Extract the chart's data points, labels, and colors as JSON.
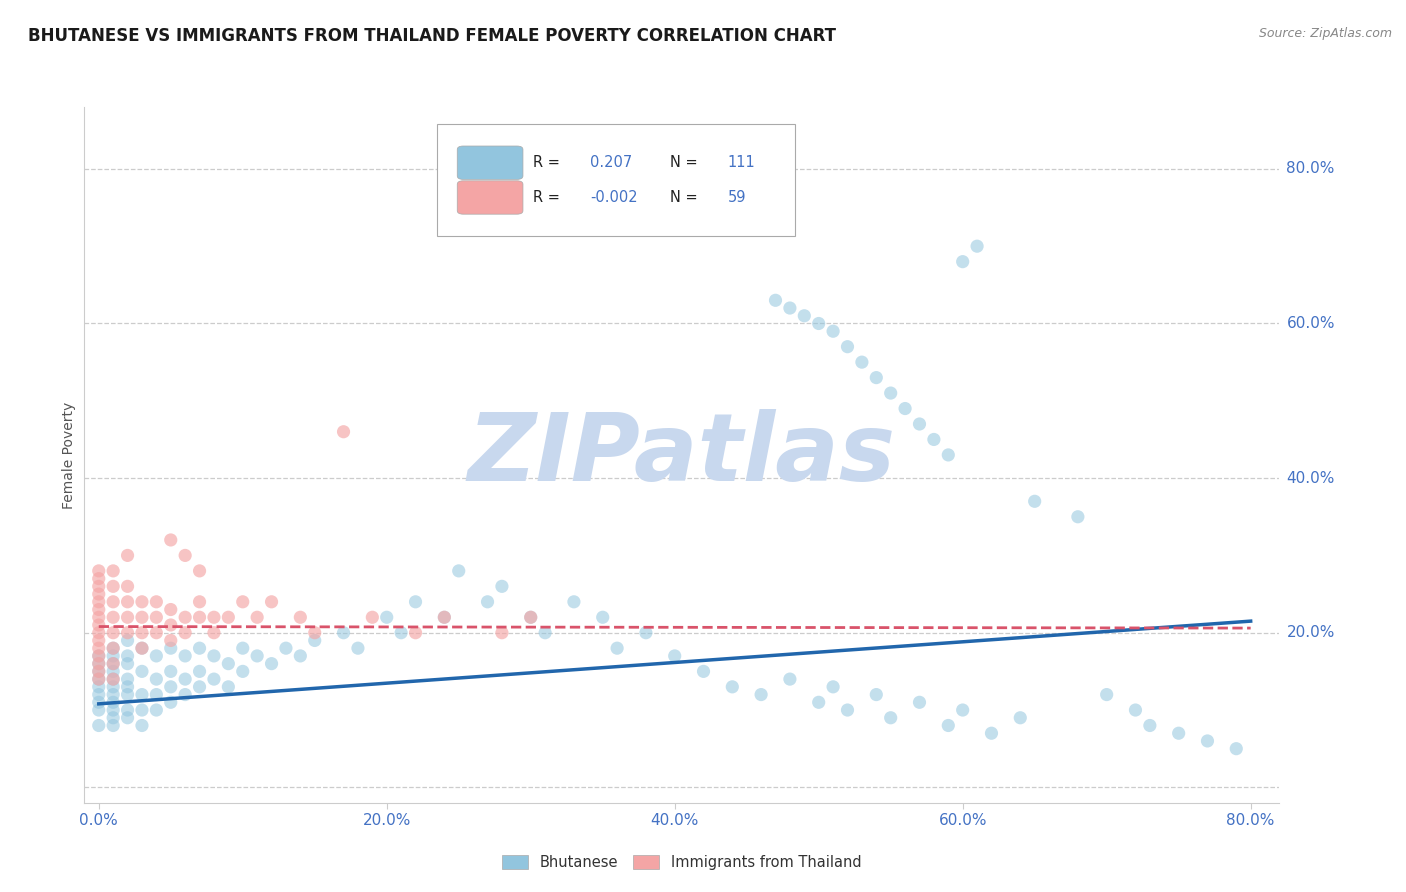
{
  "title": "BHUTANESE VS IMMIGRANTS FROM THAILAND FEMALE POVERTY CORRELATION CHART",
  "source": "Source: ZipAtlas.com",
  "ylabel": "Female Poverty",
  "xlim": [
    -0.01,
    0.82
  ],
  "ylim": [
    -0.02,
    0.88
  ],
  "ytick_vals": [
    0.0,
    0.2,
    0.4,
    0.6,
    0.8
  ],
  "xtick_vals": [
    0.0,
    0.2,
    0.4,
    0.6,
    0.8
  ],
  "blue_R": "0.207",
  "blue_N": "111",
  "pink_R": "-0.002",
  "pink_N": "59",
  "blue_color": "#92C5DE",
  "pink_color": "#F4A5A5",
  "blue_line_color": "#2166AC",
  "pink_line_color": "#D9536A",
  "blue_line": {
    "x0": 0.0,
    "x1": 0.8,
    "y0": 0.108,
    "y1": 0.215
  },
  "pink_line": {
    "x0": 0.0,
    "x1": 0.8,
    "y0": 0.208,
    "y1": 0.206
  },
  "blue_scatter_x": [
    0.0,
    0.0,
    0.0,
    0.0,
    0.0,
    0.0,
    0.0,
    0.0,
    0.0,
    0.01,
    0.01,
    0.01,
    0.01,
    0.01,
    0.01,
    0.01,
    0.01,
    0.01,
    0.01,
    0.01,
    0.02,
    0.02,
    0.02,
    0.02,
    0.02,
    0.02,
    0.02,
    0.02,
    0.03,
    0.03,
    0.03,
    0.03,
    0.03,
    0.04,
    0.04,
    0.04,
    0.04,
    0.05,
    0.05,
    0.05,
    0.05,
    0.06,
    0.06,
    0.06,
    0.07,
    0.07,
    0.07,
    0.08,
    0.08,
    0.09,
    0.09,
    0.1,
    0.1,
    0.11,
    0.12,
    0.13,
    0.14,
    0.15,
    0.17,
    0.18,
    0.2,
    0.21,
    0.22,
    0.24,
    0.25,
    0.27,
    0.28,
    0.3,
    0.31,
    0.33,
    0.35,
    0.36,
    0.38,
    0.4,
    0.42,
    0.44,
    0.46,
    0.48,
    0.5,
    0.51,
    0.52,
    0.54,
    0.55,
    0.57,
    0.59,
    0.6,
    0.62,
    0.64,
    0.65,
    0.68,
    0.7,
    0.72,
    0.73,
    0.75,
    0.77,
    0.79,
    0.47,
    0.48,
    0.49,
    0.5,
    0.51,
    0.52,
    0.53,
    0.54,
    0.55,
    0.56,
    0.57,
    0.58,
    0.59,
    0.6,
    0.61
  ],
  "blue_scatter_y": [
    0.14,
    0.15,
    0.16,
    0.13,
    0.12,
    0.1,
    0.17,
    0.08,
    0.11,
    0.18,
    0.16,
    0.14,
    0.12,
    0.1,
    0.13,
    0.17,
    0.09,
    0.15,
    0.11,
    0.08,
    0.19,
    0.16,
    0.14,
    0.12,
    0.1,
    0.17,
    0.13,
    0.09,
    0.18,
    0.15,
    0.12,
    0.1,
    0.08,
    0.17,
    0.14,
    0.12,
    0.1,
    0.18,
    0.15,
    0.13,
    0.11,
    0.17,
    0.14,
    0.12,
    0.18,
    0.15,
    0.13,
    0.17,
    0.14,
    0.16,
    0.13,
    0.18,
    0.15,
    0.17,
    0.16,
    0.18,
    0.17,
    0.19,
    0.2,
    0.18,
    0.22,
    0.2,
    0.24,
    0.22,
    0.28,
    0.24,
    0.26,
    0.22,
    0.2,
    0.24,
    0.22,
    0.18,
    0.2,
    0.17,
    0.15,
    0.13,
    0.12,
    0.14,
    0.11,
    0.13,
    0.1,
    0.12,
    0.09,
    0.11,
    0.08,
    0.1,
    0.07,
    0.09,
    0.37,
    0.35,
    0.12,
    0.1,
    0.08,
    0.07,
    0.06,
    0.05,
    0.63,
    0.62,
    0.61,
    0.6,
    0.59,
    0.57,
    0.55,
    0.53,
    0.51,
    0.49,
    0.47,
    0.45,
    0.43,
    0.68,
    0.7
  ],
  "pink_scatter_x": [
    0.0,
    0.0,
    0.0,
    0.0,
    0.0,
    0.0,
    0.0,
    0.0,
    0.0,
    0.0,
    0.0,
    0.0,
    0.0,
    0.0,
    0.0,
    0.01,
    0.01,
    0.01,
    0.01,
    0.01,
    0.01,
    0.01,
    0.01,
    0.02,
    0.02,
    0.02,
    0.02,
    0.02,
    0.03,
    0.03,
    0.03,
    0.03,
    0.04,
    0.04,
    0.04,
    0.05,
    0.05,
    0.05,
    0.06,
    0.06,
    0.07,
    0.07,
    0.08,
    0.08,
    0.09,
    0.1,
    0.11,
    0.12,
    0.14,
    0.15,
    0.17,
    0.19,
    0.22,
    0.24,
    0.28,
    0.3,
    0.05,
    0.06,
    0.07
  ],
  "pink_scatter_y": [
    0.17,
    0.19,
    0.21,
    0.23,
    0.25,
    0.27,
    0.15,
    0.16,
    0.18,
    0.2,
    0.22,
    0.24,
    0.26,
    0.14,
    0.28,
    0.22,
    0.24,
    0.26,
    0.28,
    0.2,
    0.18,
    0.16,
    0.14,
    0.24,
    0.26,
    0.2,
    0.22,
    0.3,
    0.22,
    0.24,
    0.2,
    0.18,
    0.22,
    0.24,
    0.2,
    0.21,
    0.23,
    0.19,
    0.22,
    0.2,
    0.24,
    0.22,
    0.2,
    0.22,
    0.22,
    0.24,
    0.22,
    0.24,
    0.22,
    0.2,
    0.46,
    0.22,
    0.2,
    0.22,
    0.2,
    0.22,
    0.32,
    0.3,
    0.28
  ],
  "watermark_text": "ZIPatlas",
  "watermark_color": "#C8D8EE",
  "background_color": "#ffffff",
  "grid_color": "#CCCCCC",
  "title_fontsize": 12,
  "tick_color": "#4472C4",
  "right_label_20": "20.0%"
}
